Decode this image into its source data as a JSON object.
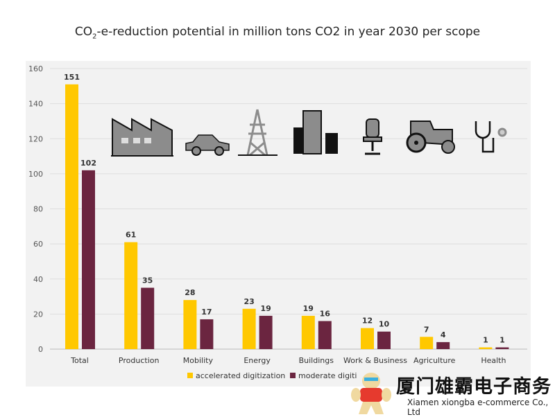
{
  "title_prefix": "CO",
  "title_sub": "2",
  "title_rest": "-e-reduction potential in million tons CO2 in year 2030 per scope",
  "chart_data": {
    "type": "bar",
    "title": "CO2-e-reduction potential in million tons CO2 in year 2030 per scope",
    "categories": [
      "Total",
      "Production",
      "Mobility",
      "Energy",
      "Buildings",
      "Work & Business",
      "Agriculture",
      "Health"
    ],
    "series": [
      {
        "name": "accelerated digitization",
        "color": "#ffc800",
        "values": [
          151,
          61,
          28,
          23,
          19,
          12,
          7,
          1
        ]
      },
      {
        "name": "moderate digitization",
        "color": "#6b2540",
        "values": [
          102,
          35,
          17,
          19,
          16,
          10,
          4,
          1
        ]
      }
    ],
    "ylim": [
      0,
      160
    ],
    "yticks": [
      0,
      20,
      40,
      60,
      80,
      100,
      120,
      140,
      160
    ],
    "grid": true,
    "legend": "bottom-left",
    "icons": [
      "factory-icon",
      "car-icon",
      "power-tower-icon",
      "buildings-icon",
      "office-chair-icon",
      "tractor-icon",
      "stethoscope-icon"
    ]
  },
  "legend": {
    "a": "accelerated digitization",
    "b": "moderate digiti"
  },
  "watermark": {
    "cn": "厦门雄霸电子商务",
    "en": "Xiamen xiongba e-commerce Co., Ltd"
  }
}
